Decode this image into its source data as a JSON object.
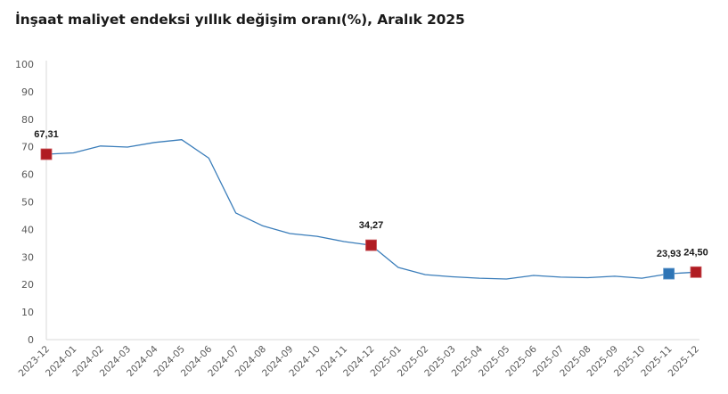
{
  "title": "İnşaat maliyet endeksi yıllık değişim oranı(%), Aralık 2025",
  "colors": {
    "line": "#3A7DBA",
    "highlight_red": "#B01C22",
    "highlight_blue": "#2E75B6",
    "axis": "#D9D9D9",
    "tick_text": "#595959"
  },
  "chart_data": {
    "type": "line",
    "title": "İnşaat maliyet endeksi yıllık değişim oranı(%), Aralık 2025",
    "xlabel": "",
    "ylabel": "",
    "ylim": [
      0,
      100
    ],
    "yticks": [
      0,
      10,
      20,
      30,
      40,
      50,
      60,
      70,
      80,
      90,
      100
    ],
    "grid": false,
    "legend": "none",
    "categories": [
      "2023-12",
      "2024-01",
      "2024-02",
      "2024-03",
      "2024-04",
      "2024-05",
      "2024-06",
      "2024-07",
      "2024-08",
      "2024-09",
      "2024-10",
      "2024-11",
      "2024-12",
      "2025-01",
      "2025-02",
      "2025-03",
      "2025-04",
      "2025-05",
      "2025-06",
      "2025-07",
      "2025-08",
      "2025-09",
      "2025-10",
      "2025-11",
      "2025-12"
    ],
    "series": [
      {
        "name": "Yıllık değişim oranı (%)",
        "values": [
          67.31,
          67.8,
          70.3,
          69.9,
          71.6,
          72.6,
          65.9,
          46.0,
          41.3,
          38.5,
          37.5,
          35.6,
          34.27,
          26.2,
          23.6,
          22.8,
          22.3,
          22.0,
          23.3,
          22.7,
          22.5,
          23.0,
          22.3,
          23.93,
          24.5
        ]
      }
    ],
    "annotations": [
      {
        "index": 0,
        "label": "67,31",
        "marker": "square",
        "color": "#B01C22"
      },
      {
        "index": 12,
        "label": "34,27",
        "marker": "square",
        "color": "#B01C22"
      },
      {
        "index": 23,
        "label": "23,93",
        "marker": "square",
        "color": "#2E75B6"
      },
      {
        "index": 24,
        "label": "24,50",
        "marker": "square",
        "color": "#B01C22"
      }
    ]
  }
}
